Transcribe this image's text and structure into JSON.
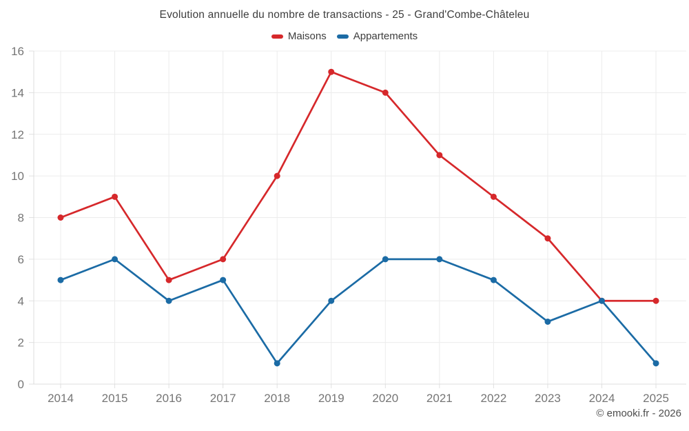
{
  "chart_data": {
    "type": "line",
    "title": "Evolution annuelle du nombre de transactions - 25 - Grand'Combe-Châteleu",
    "categories": [
      "2014",
      "2015",
      "2016",
      "2017",
      "2018",
      "2019",
      "2020",
      "2021",
      "2022",
      "2023",
      "2024",
      "2025"
    ],
    "series": [
      {
        "name": "Maisons",
        "color": "#d6282b",
        "values": [
          8,
          9,
          5,
          6,
          10,
          15,
          14,
          11,
          9,
          7,
          4,
          4
        ]
      },
      {
        "name": "Appartements",
        "color": "#1b6ba5",
        "values": [
          5,
          6,
          4,
          5,
          1,
          4,
          6,
          6,
          5,
          3,
          4,
          1
        ]
      }
    ],
    "xlabel": "",
    "ylabel": "",
    "ylim": [
      0,
      16
    ],
    "ytick_step": 2,
    "yticks": [
      "0",
      "2",
      "4",
      "6",
      "8",
      "10",
      "12",
      "14",
      "16"
    ],
    "grid": true,
    "legend_position": "top",
    "marker": "circle"
  },
  "footer": {
    "copyright": "© emooki.fr - 2026"
  },
  "colors": {
    "grid": "#ececec",
    "axis": "#dcdcdc",
    "tick": "#e0e0e0",
    "tick_label": "#757575",
    "title_text": "#3d3d3d"
  }
}
